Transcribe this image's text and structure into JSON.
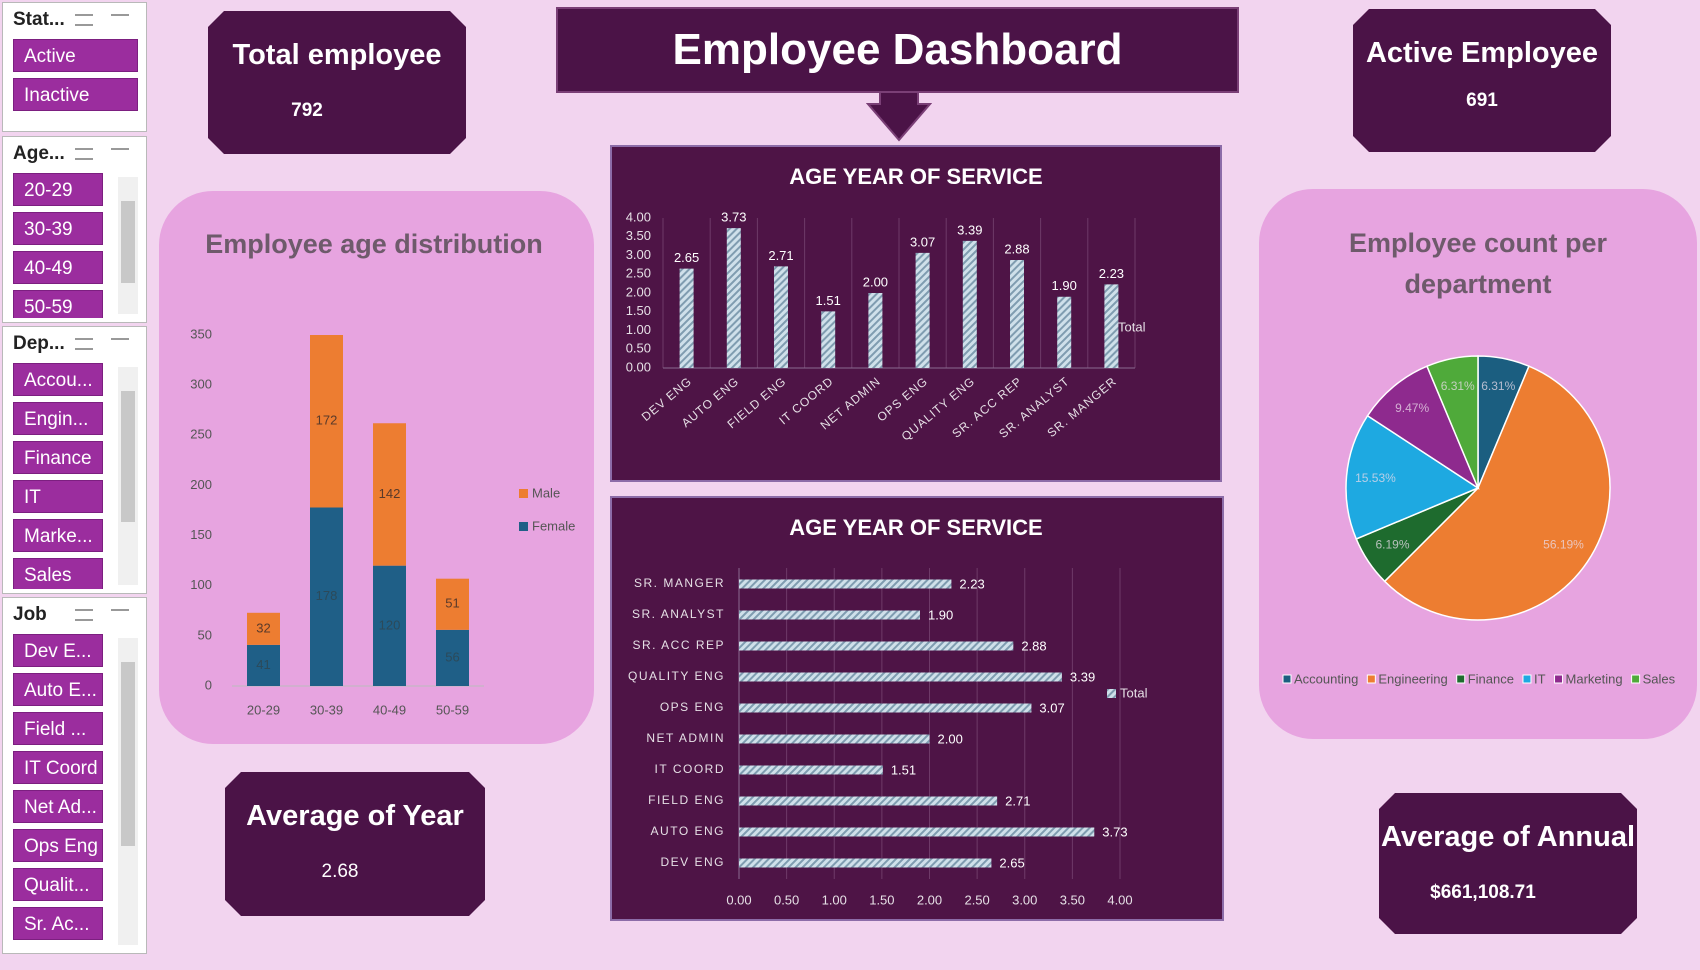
{
  "header": {
    "title": "Employee Dashboard"
  },
  "kpis": [
    {
      "label": "Total employee",
      "value": "792"
    },
    {
      "label": "Active Employee",
      "value": "691"
    },
    {
      "label": "Average of Year",
      "value": "2.68"
    },
    {
      "label": "Average of Annual",
      "value": "$661,108.71"
    }
  ],
  "slicers": [
    {
      "title": "Stat...",
      "items": [
        "Active",
        "Inactive"
      ]
    },
    {
      "title": "Age...",
      "items": [
        "20-29",
        "30-39",
        "40-49",
        "50-59"
      ]
    },
    {
      "title": "Dep...",
      "items": [
        "Accou...",
        "Engin...",
        "Finance",
        "IT",
        "Marke...",
        "Sales"
      ]
    },
    {
      "title": "Job",
      "items": [
        "Dev E...",
        "Auto E...",
        "Field ...",
        "IT Coord",
        "Net Ad...",
        "Ops Eng",
        "Qualit...",
        "Sr. Ac..."
      ]
    }
  ],
  "chart_data": [
    {
      "type": "bar",
      "stacked": true,
      "title": "Employee age distribution",
      "categories": [
        "20-29",
        "30-39",
        "40-49",
        "50-59"
      ],
      "series": [
        {
          "name": "Female",
          "color": "#1f5f87",
          "values": [
            41,
            178,
            120,
            56
          ]
        },
        {
          "name": "Male",
          "color": "#ed7d31",
          "values": [
            32,
            172,
            142,
            51
          ]
        }
      ],
      "ylim": [
        0,
        350
      ],
      "yticks": [
        0,
        50,
        100,
        150,
        200,
        250,
        300,
        350
      ],
      "grid": false,
      "legend": "right"
    },
    {
      "type": "bar",
      "title": "AGE YEAR OF SERVICE",
      "categories": [
        "DEV ENG",
        "AUTO ENG",
        "FIELD ENG",
        "IT COORD",
        "NET ADMIN",
        "OPS ENG",
        "QUALITY ENG",
        "SR. ACC REP",
        "SR. ANALYST",
        "SR. MANGER"
      ],
      "series": [
        {
          "name": "Total",
          "values": [
            2.65,
            3.73,
            2.71,
            1.51,
            2.0,
            3.07,
            3.39,
            2.88,
            1.9,
            2.23
          ],
          "value_labels": [
            "2.65",
            "3.73",
            "2.71",
            "1.51",
            "2.00",
            "3.07",
            "3.39",
            "2.88",
            "1.90",
            "2.23"
          ]
        }
      ],
      "ylim": [
        0,
        4
      ],
      "yticks": [
        {
          "value": 0,
          "label": "0.00"
        },
        {
          "value": 0.5,
          "label": "0.50"
        },
        {
          "value": 1,
          "label": "1.00"
        },
        {
          "value": 1.5,
          "label": "1.50"
        },
        {
          "value": 2,
          "label": "2.00"
        },
        {
          "value": 2.5,
          "label": "2.50"
        },
        {
          "value": 3,
          "label": "3.00"
        },
        {
          "value": 3.5,
          "label": "3.50"
        },
        {
          "value": 4,
          "label": "4.00"
        }
      ],
      "grid": true,
      "legend": "right"
    },
    {
      "type": "bar",
      "horizontal": true,
      "title": "AGE YEAR OF SERVICE",
      "categories": [
        "DEV ENG",
        "AUTO ENG",
        "FIELD ENG",
        "IT COORD",
        "NET ADMIN",
        "OPS ENG",
        "QUALITY ENG",
        "SR. ACC REP",
        "SR. ANALYST",
        "SR. MANGER"
      ],
      "series": [
        {
          "name": "Total",
          "values": [
            2.65,
            3.73,
            2.71,
            1.51,
            2.0,
            3.07,
            3.39,
            2.88,
            1.9,
            2.23
          ],
          "value_labels": [
            "2.65",
            "3.73",
            "2.71",
            "1.51",
            "2.00",
            "3.07",
            "3.39",
            "2.88",
            "1.90",
            "2.23"
          ]
        }
      ],
      "xlim": [
        0,
        4
      ],
      "xticks": [
        {
          "value": 0,
          "label": "0.00"
        },
        {
          "value": 0.5,
          "label": "0.50"
        },
        {
          "value": 1,
          "label": "1.00"
        },
        {
          "value": 1.5,
          "label": "1.50"
        },
        {
          "value": 2,
          "label": "2.00"
        },
        {
          "value": 2.5,
          "label": "2.50"
        },
        {
          "value": 3,
          "label": "3.00"
        },
        {
          "value": 3.5,
          "label": "3.50"
        },
        {
          "value": 4,
          "label": "4.00"
        }
      ],
      "grid": true,
      "legend": "right"
    },
    {
      "type": "pie",
      "title": "Employee count per department",
      "categories": [
        "Accounting",
        "Engineering",
        "Finance",
        "IT",
        "Marketing",
        "Sales"
      ],
      "values": [
        6.31,
        56.19,
        6.19,
        15.53,
        9.47,
        6.31
      ],
      "value_labels": [
        "6.31%",
        "56.19%",
        "6.19%",
        "15.53%",
        "9.47%",
        "6.31%"
      ],
      "colors": [
        "#1b5e80",
        "#ed7d31",
        "#1e6b2e",
        "#1ea9e1",
        "#8e2a8e",
        "#4faa3a"
      ],
      "legend": "bottom"
    }
  ]
}
